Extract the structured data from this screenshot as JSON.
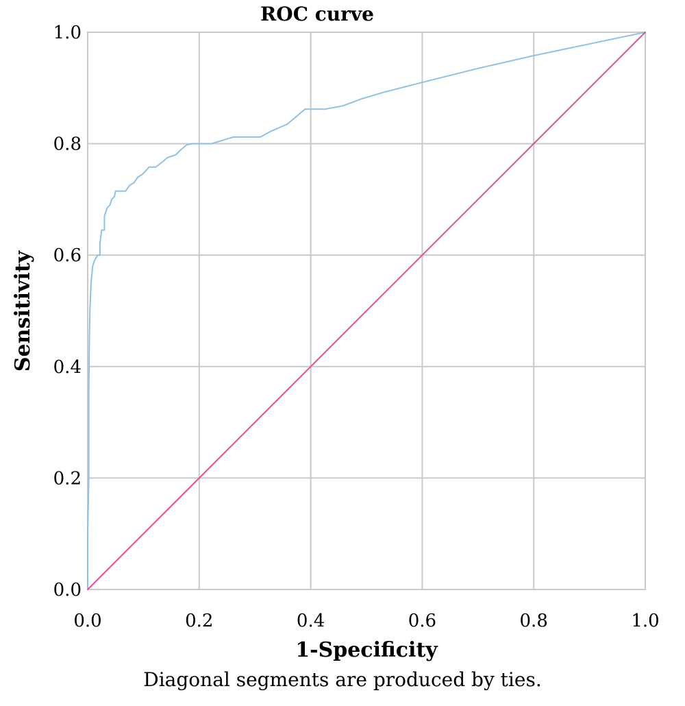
{
  "chart_data": {
    "type": "line",
    "title": "ROC curve",
    "xlabel": "1-Specificity",
    "ylabel": "Sensitivity",
    "footnote": "Diagonal segments are produced by ties.",
    "xlim": [
      0,
      1
    ],
    "ylim": [
      0,
      1
    ],
    "xticks": [
      "0.0",
      "0.2",
      "0.4",
      "0.6",
      "0.8",
      "1.0"
    ],
    "yticks": [
      "0.0",
      "0.2",
      "0.4",
      "0.6",
      "0.8",
      "1.0"
    ],
    "grid": true,
    "legend": "none",
    "series": [
      {
        "color": "#8ec1e6",
        "points": [
          [
            0.0,
            0.0
          ],
          [
            0.0,
            0.1
          ],
          [
            0.002,
            0.2
          ],
          [
            0.002,
            0.35
          ],
          [
            0.003,
            0.45
          ],
          [
            0.004,
            0.5
          ],
          [
            0.006,
            0.55
          ],
          [
            0.009,
            0.58
          ],
          [
            0.012,
            0.59
          ],
          [
            0.018,
            0.6
          ],
          [
            0.022,
            0.6
          ],
          [
            0.022,
            0.62
          ],
          [
            0.025,
            0.645
          ],
          [
            0.03,
            0.645
          ],
          [
            0.03,
            0.67
          ],
          [
            0.035,
            0.685
          ],
          [
            0.04,
            0.69
          ],
          [
            0.043,
            0.7
          ],
          [
            0.048,
            0.705
          ],
          [
            0.05,
            0.715
          ],
          [
            0.065,
            0.715
          ],
          [
            0.068,
            0.715
          ],
          [
            0.075,
            0.725
          ],
          [
            0.083,
            0.73
          ],
          [
            0.09,
            0.74
          ],
          [
            0.098,
            0.745
          ],
          [
            0.103,
            0.75
          ],
          [
            0.11,
            0.758
          ],
          [
            0.122,
            0.758
          ],
          [
            0.135,
            0.768
          ],
          [
            0.143,
            0.775
          ],
          [
            0.158,
            0.78
          ],
          [
            0.168,
            0.79
          ],
          [
            0.178,
            0.798
          ],
          [
            0.188,
            0.8
          ],
          [
            0.222,
            0.8
          ],
          [
            0.262,
            0.812
          ],
          [
            0.31,
            0.812
          ],
          [
            0.328,
            0.822
          ],
          [
            0.358,
            0.835
          ],
          [
            0.39,
            0.862
          ],
          [
            0.426,
            0.862
          ],
          [
            0.458,
            0.868
          ],
          [
            0.49,
            0.88
          ],
          [
            0.53,
            0.892
          ],
          [
            0.6,
            0.91
          ],
          [
            0.7,
            0.935
          ],
          [
            0.8,
            0.958
          ],
          [
            0.9,
            0.979
          ],
          [
            1.0,
            1.0
          ]
        ]
      },
      {
        "color": "#e05292",
        "points": [
          [
            0,
            0
          ],
          [
            1,
            1
          ]
        ]
      }
    ]
  }
}
